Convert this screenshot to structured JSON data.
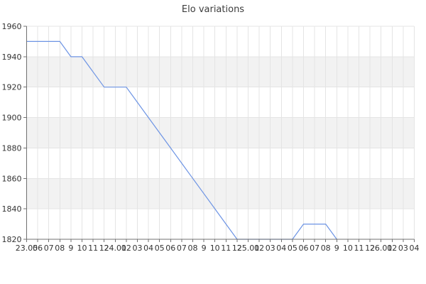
{
  "chart_data": {
    "type": "line",
    "title": "Elo variations",
    "x_tick_labels": [
      "23.05",
      "06",
      "07",
      "08",
      "9",
      "10",
      "11",
      "12",
      "24.01",
      "02",
      "03",
      "04",
      "05",
      "06",
      "07",
      "08",
      "9",
      "10",
      "11",
      "12",
      "25.01",
      "02",
      "03",
      "04",
      "05",
      "06",
      "07",
      "08",
      "9",
      "10",
      "11",
      "12",
      "26.01",
      "02",
      "03",
      "04"
    ],
    "y_tick_labels": [
      "1820",
      "1840",
      "1860",
      "1880",
      "1900",
      "1920",
      "1940",
      "1960"
    ],
    "ylim": [
      1820,
      1960
    ],
    "series": [
      {
        "name": "Elo",
        "values": [
          1950,
          1950,
          1950,
          1950,
          1940,
          1940,
          1930,
          1920,
          1920,
          1920,
          1910,
          1900,
          1890,
          1880,
          1870,
          1860,
          1850,
          1840,
          1830,
          1820,
          1820,
          1820,
          1820,
          1820,
          1820,
          1830,
          1830,
          1830,
          1820
        ]
      }
    ],
    "shaded_bands": [
      [
        1840,
        1860
      ],
      [
        1880,
        1900
      ],
      [
        1920,
        1940
      ]
    ],
    "grid": "on",
    "legend": "none",
    "colors": {
      "line": "#6d94e4",
      "band": "#f2f2f2",
      "gridline": "#e4e4e4",
      "axis": "#707070",
      "tick_label": "#333333",
      "title": "#3c3c3c",
      "background": "#ffffff"
    }
  }
}
